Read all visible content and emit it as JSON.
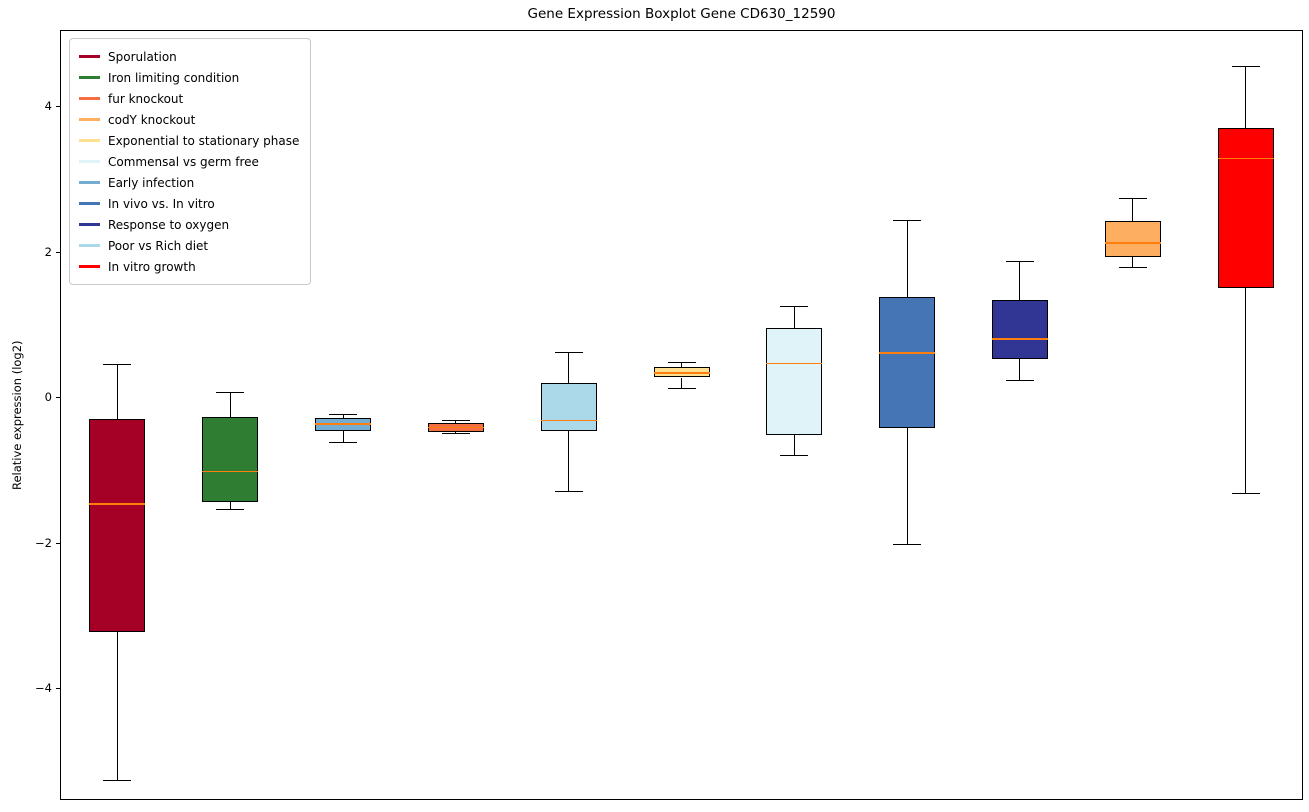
{
  "chart_data": {
    "type": "boxplot",
    "title": "Gene Expression Boxplot Gene CD630_12590",
    "xlabel": "",
    "ylabel": "Relative expression (log2)",
    "ylim": [
      -5.5,
      5.05
    ],
    "grid": false,
    "legend_position": "upper left",
    "median_color": "#ff7f0e",
    "box_edge_color": "#000000",
    "yticks": [
      {
        "value": 4,
        "label": "4"
      },
      {
        "value": 2,
        "label": "2"
      },
      {
        "value": 0,
        "label": "0"
      },
      {
        "value": -2,
        "label": "−2"
      },
      {
        "value": -4,
        "label": "−4"
      }
    ],
    "series": [
      {
        "name": "Sporulation",
        "color": "#a50026",
        "whisker_low": -5.25,
        "q1": -3.2,
        "median": -1.45,
        "q3": -0.28,
        "whisker_high": 0.47
      },
      {
        "name": "Iron limiting condition",
        "color": "#2e7d32",
        "whisker_low": -1.52,
        "q1": -1.42,
        "median": -1.0,
        "q3": -0.25,
        "whisker_high": 0.08
      },
      {
        "name": "Early infection",
        "color": "#74add1",
        "whisker_low": -0.6,
        "q1": -0.44,
        "median": -0.35,
        "q3": -0.27,
        "whisker_high": -0.22
      },
      {
        "name": "fur knockout",
        "color": "#f46d43",
        "whisker_low": -0.48,
        "q1": -0.46,
        "median": -0.4,
        "q3": -0.34,
        "whisker_high": -0.3
      },
      {
        "name": "Poor vs Rich diet",
        "color": "#abd9e9",
        "whisker_low": -1.27,
        "q1": -0.45,
        "median": -0.3,
        "q3": 0.22,
        "whisker_high": 0.64
      },
      {
        "name": "Exponential to stationary phase",
        "color": "#fee090",
        "whisker_low": 0.14,
        "q1": 0.29,
        "median": 0.35,
        "q3": 0.44,
        "whisker_high": 0.5
      },
      {
        "name": "Commensal vs germ free",
        "color": "#e0f3f8",
        "whisker_low": -0.78,
        "q1": -0.5,
        "median": 0.48,
        "q3": 0.97,
        "whisker_high": 1.26
      },
      {
        "name": "In vivo vs. In vitro",
        "color": "#4575b4",
        "whisker_low": -2.0,
        "q1": -0.4,
        "median": 0.63,
        "q3": 1.4,
        "whisker_high": 2.45
      },
      {
        "name": "Response to oxygen",
        "color": "#313695",
        "whisker_low": 0.25,
        "q1": 0.55,
        "median": 0.82,
        "q3": 1.35,
        "whisker_high": 1.88
      },
      {
        "name": "codY knockout",
        "color": "#fdae61",
        "whisker_low": 1.8,
        "q1": 1.95,
        "median": 2.14,
        "q3": 2.44,
        "whisker_high": 2.75
      },
      {
        "name": "In vitro growth",
        "color": "#ff0000",
        "whisker_low": -1.3,
        "q1": 1.52,
        "median": 3.3,
        "q3": 3.72,
        "whisker_high": 4.56
      }
    ],
    "legend": [
      {
        "label": "Sporulation",
        "color": "#a50026"
      },
      {
        "label": "Iron limiting condition",
        "color": "#2e7d32"
      },
      {
        "label": "fur knockout",
        "color": "#f46d43"
      },
      {
        "label": "codY knockout",
        "color": "#fdae61"
      },
      {
        "label": "Exponential to stationary phase",
        "color": "#fee090"
      },
      {
        "label": "Commensal vs germ free",
        "color": "#e0f3f8"
      },
      {
        "label": "Early infection",
        "color": "#74add1"
      },
      {
        "label": "In vivo vs. In vitro",
        "color": "#4575b4"
      },
      {
        "label": "Response to oxygen",
        "color": "#313695"
      },
      {
        "label": "Poor vs Rich diet",
        "color": "#abd9e9"
      },
      {
        "label": "In vitro growth",
        "color": "#ff0000"
      }
    ]
  }
}
